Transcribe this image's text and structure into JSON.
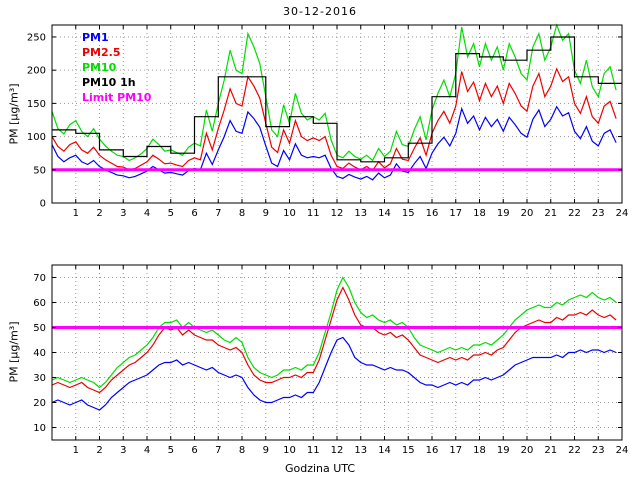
{
  "figure": {
    "title": "30-12-2016",
    "xlabel": "Godzina UTC",
    "ylabel": "PM [µg/m³]"
  },
  "colors": {
    "pm1": "#0000ff",
    "pm25": "#ee0000",
    "pm10": "#00dd00",
    "pm10_1h": "#000000",
    "limit": "#ff00ff",
    "grid": "#9a9a9a",
    "frame": "#000000"
  },
  "legend": [
    {
      "label": "PM1",
      "color": "#0000ff"
    },
    {
      "label": "PM2.5",
      "color": "#ee0000"
    },
    {
      "label": "PM10",
      "color": "#00dd00"
    },
    {
      "label": "PM10 1h",
      "color": "#000000"
    },
    {
      "label": "Limit PM10",
      "color": "#ff00ff"
    }
  ],
  "chart_data": [
    {
      "type": "line",
      "title": "30-12-2016",
      "ylabel": "PM [µg/m³]",
      "xlim": [
        0,
        24
      ],
      "ylim": [
        0,
        268
      ],
      "xticks": [
        1,
        2,
        3,
        4,
        5,
        6,
        7,
        8,
        9,
        10,
        11,
        12,
        13,
        14,
        15,
        16,
        17,
        18,
        19,
        20,
        21,
        22,
        23,
        24
      ],
      "yticks": [
        0,
        50,
        100,
        150,
        200,
        250
      ],
      "grid": true,
      "dx_hours": 0.25,
      "series": [
        {
          "name": "PM1",
          "color": "#0000ff",
          "values": [
            88,
            70,
            62,
            68,
            72,
            62,
            58,
            64,
            55,
            50,
            46,
            42,
            41,
            38,
            40,
            44,
            48,
            55,
            50,
            45,
            46,
            44,
            42,
            49,
            52,
            50,
            75,
            58,
            80,
            100,
            124,
            108,
            105,
            137,
            127,
            114,
            86,
            60,
            55,
            79,
            65,
            89,
            72,
            68,
            70,
            68,
            72,
            52,
            40,
            37,
            43,
            39,
            36,
            40,
            35,
            45,
            38,
            42,
            59,
            48,
            46,
            59,
            70,
            52,
            75,
            89,
            99,
            86,
            105,
            142,
            120,
            131,
            110,
            129,
            115,
            126,
            108,
            129,
            118,
            105,
            99,
            126,
            140,
            115,
            126,
            145,
            131,
            136,
            108,
            97,
            115,
            93,
            86,
            105,
            110,
            91
          ]
        },
        {
          "name": "PM2.5",
          "color": "#ee0000",
          "values": [
            100,
            85,
            78,
            88,
            92,
            80,
            75,
            84,
            72,
            65,
            60,
            55,
            54,
            50,
            52,
            57,
            62,
            72,
            66,
            59,
            60,
            57,
            55,
            64,
            68,
            65,
            105,
            80,
            112,
            140,
            172,
            150,
            146,
            190,
            176,
            158,
            120,
            84,
            76,
            110,
            90,
            124,
            100,
            94,
            98,
            94,
            100,
            72,
            55,
            52,
            60,
            54,
            50,
            55,
            49,
            62,
            53,
            59,
            82,
            66,
            64,
            82,
            98,
            72,
            105,
            124,
            138,
            120,
            146,
            198,
            168,
            182,
            154,
            180,
            160,
            176,
            150,
            180,
            165,
            146,
            138,
            176,
            195,
            160,
            176,
            202,
            183,
            190,
            150,
            135,
            160,
            130,
            120,
            146,
            153,
            127
          ]
        },
        {
          "name": "PM10",
          "color": "#00dd00",
          "values": [
            138,
            112,
            104,
            118,
            124,
            108,
            100,
            112,
            96,
            86,
            78,
            72,
            70,
            64,
            68,
            74,
            82,
            96,
            88,
            78,
            80,
            76,
            72,
            84,
            90,
            86,
            140,
            108,
            150,
            185,
            230,
            200,
            195,
            255,
            235,
            210,
            160,
            110,
            100,
            148,
            120,
            165,
            135,
            125,
            130,
            125,
            135,
            95,
            72,
            68,
            78,
            70,
            66,
            72,
            64,
            82,
            70,
            78,
            108,
            88,
            85,
            110,
            130,
            95,
            140,
            165,
            185,
            160,
            195,
            265,
            220,
            240,
            205,
            240,
            215,
            235,
            200,
            240,
            220,
            195,
            185,
            235,
            255,
            215,
            235,
            268,
            245,
            255,
            200,
            180,
            215,
            175,
            160,
            195,
            205,
            170
          ]
        }
      ],
      "step_series": {
        "name": "PM10 1h",
        "color": "#000000",
        "values": [
          110,
          105,
          80,
          70,
          85,
          75,
          130,
          190,
          190,
          115,
          130,
          120,
          65,
          62,
          68,
          90,
          160,
          225,
          220,
          215,
          230,
          250,
          190,
          180
        ]
      },
      "limit_line": {
        "name": "Limit PM10",
        "value": 50,
        "color": "#ff00ff"
      },
      "legend_position": "top-left"
    },
    {
      "type": "line",
      "xlabel": "Godzina UTC",
      "ylabel": "PM [µg/m³]",
      "xlim": [
        0,
        24
      ],
      "ylim": [
        5,
        75
      ],
      "xticks": [
        1,
        2,
        3,
        4,
        5,
        6,
        7,
        8,
        9,
        10,
        11,
        12,
        13,
        14,
        15,
        16,
        17,
        18,
        19,
        20,
        21,
        22,
        23,
        24
      ],
      "yticks": [
        10,
        20,
        30,
        40,
        50,
        60,
        70
      ],
      "grid": true,
      "dx_hours": 0.25,
      "series": [
        {
          "name": "PM1",
          "color": "#0000ff",
          "values": [
            20,
            21,
            20,
            19,
            20,
            21,
            19,
            18,
            17,
            19,
            22,
            24,
            26,
            28,
            29,
            30,
            31,
            33,
            35,
            36,
            36,
            37,
            35,
            36,
            35,
            34,
            33,
            34,
            32,
            31,
            30,
            31,
            30,
            26,
            23,
            21,
            20,
            20,
            21,
            22,
            22,
            23,
            22,
            24,
            24,
            28,
            34,
            40,
            45,
            46,
            43,
            38,
            36,
            35,
            35,
            34,
            33,
            34,
            33,
            33,
            32,
            30,
            28,
            27,
            27,
            26,
            27,
            28,
            27,
            28,
            27,
            29,
            29,
            30,
            29,
            30,
            31,
            33,
            35,
            36,
            37,
            38,
            38,
            38,
            38,
            39,
            38,
            40,
            40,
            41,
            40,
            41,
            41,
            40,
            41,
            40
          ]
        },
        {
          "name": "PM2.5",
          "color": "#ee0000",
          "values": [
            27,
            28,
            27,
            26,
            27,
            28,
            26,
            25,
            24,
            26,
            29,
            31,
            33,
            35,
            36,
            38,
            40,
            43,
            47,
            50,
            49,
            50,
            47,
            49,
            47,
            46,
            45,
            45,
            43,
            42,
            41,
            42,
            40,
            35,
            31,
            29,
            28,
            28,
            29,
            30,
            30,
            31,
            30,
            32,
            32,
            37,
            45,
            53,
            61,
            66,
            61,
            55,
            51,
            50,
            50,
            48,
            47,
            48,
            46,
            47,
            45,
            42,
            39,
            38,
            37,
            36,
            37,
            38,
            37,
            38,
            37,
            39,
            39,
            40,
            39,
            41,
            42,
            45,
            48,
            50,
            51,
            52,
            53,
            52,
            52,
            54,
            53,
            55,
            55,
            56,
            55,
            57,
            55,
            54,
            55,
            53
          ]
        },
        {
          "name": "PM10",
          "color": "#00dd00",
          "values": [
            29,
            30,
            29,
            28,
            29,
            30,
            29,
            28,
            26,
            28,
            31,
            34,
            36,
            38,
            39,
            41,
            43,
            46,
            50,
            52,
            52,
            53,
            50,
            52,
            50,
            49,
            48,
            49,
            47,
            45,
            44,
            46,
            44,
            38,
            34,
            32,
            31,
            30,
            31,
            33,
            33,
            34,
            33,
            35,
            35,
            40,
            48,
            56,
            65,
            70,
            66,
            60,
            56,
            54,
            55,
            53,
            52,
            53,
            51,
            52,
            50,
            46,
            43,
            42,
            41,
            40,
            41,
            42,
            41,
            42,
            41,
            43,
            43,
            44,
            43,
            45,
            47,
            50,
            53,
            55,
            57,
            58,
            59,
            58,
            58,
            60,
            59,
            61,
            62,
            63,
            62,
            64,
            62,
            61,
            62,
            60
          ]
        }
      ],
      "limit_line": {
        "name": "Limit PM10",
        "value": 50,
        "color": "#ff00ff"
      }
    }
  ]
}
